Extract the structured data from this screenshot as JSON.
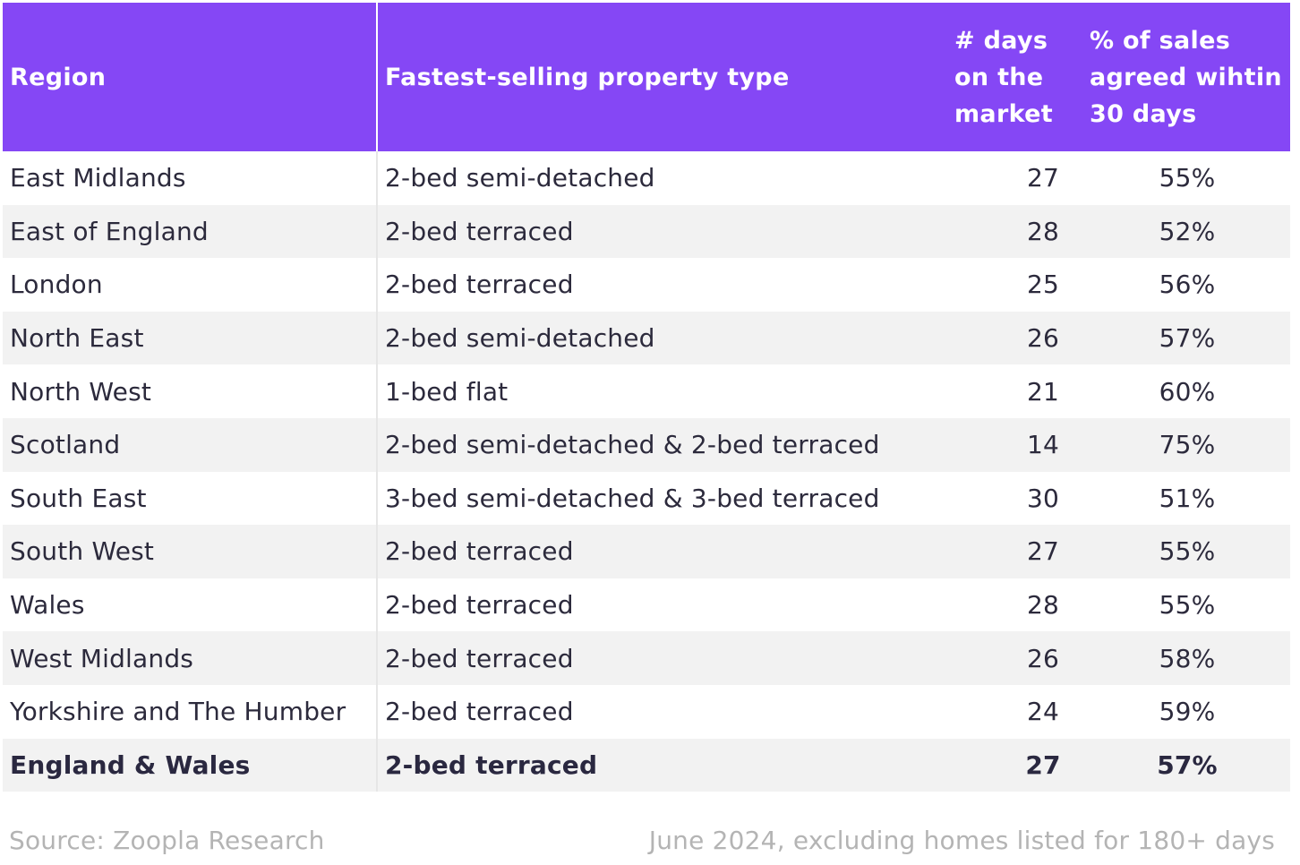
{
  "chart_data": {
    "type": "table",
    "columns": [
      "Region",
      "Fastest-selling property type",
      "# days on the market",
      "% of sales agreed wihtin 30 days"
    ],
    "header_lines": {
      "region": "Region",
      "type": "Fastest-selling property type",
      "days": [
        "# days",
        "on the",
        "market"
      ],
      "pct": [
        "% of sales",
        "agreed wihtin",
        "30 days"
      ]
    },
    "rows": [
      {
        "region": "East Midlands",
        "type": "2-bed semi-detached",
        "days": "27",
        "pct": "55%"
      },
      {
        "region": "East of England",
        "type": "2-bed terraced",
        "days": "28",
        "pct": "52%"
      },
      {
        "region": "London",
        "type": "2-bed terraced",
        "days": "25",
        "pct": "56%"
      },
      {
        "region": "North East",
        "type": "2-bed semi-detached",
        "days": "26",
        "pct": "57%"
      },
      {
        "region": "North West",
        "type": "1-bed flat",
        "days": "21",
        "pct": "60%"
      },
      {
        "region": "Scotland",
        "type": "2-bed semi-detached & 2-bed terraced",
        "days": "14",
        "pct": "75%"
      },
      {
        "region": "South East",
        "type": "3-bed semi-detached & 3-bed terraced",
        "days": "30",
        "pct": "51%"
      },
      {
        "region": "South West",
        "type": "2-bed terraced",
        "days": "27",
        "pct": "55%"
      },
      {
        "region": "Wales",
        "type": "2-bed terraced",
        "days": "28",
        "pct": "55%"
      },
      {
        "region": "West Midlands",
        "type": "2-bed terraced",
        "days": "26",
        "pct": "58%"
      },
      {
        "region": "Yorkshire and The Humber",
        "type": "2-bed terraced",
        "days": "24",
        "pct": "59%"
      }
    ],
    "total_row": {
      "region": "England & Wales",
      "type": "2-bed terraced",
      "days": "27",
      "pct": "57%"
    }
  },
  "footer": {
    "source": "Source: Zoopla Research",
    "note": "June 2024, excluding homes listed for 180+ days"
  },
  "colors": {
    "header_bg": "#8547f5",
    "header_text": "#ffffff",
    "stripe": "#f2f2f2",
    "footer_text": "#b4b4b4"
  }
}
